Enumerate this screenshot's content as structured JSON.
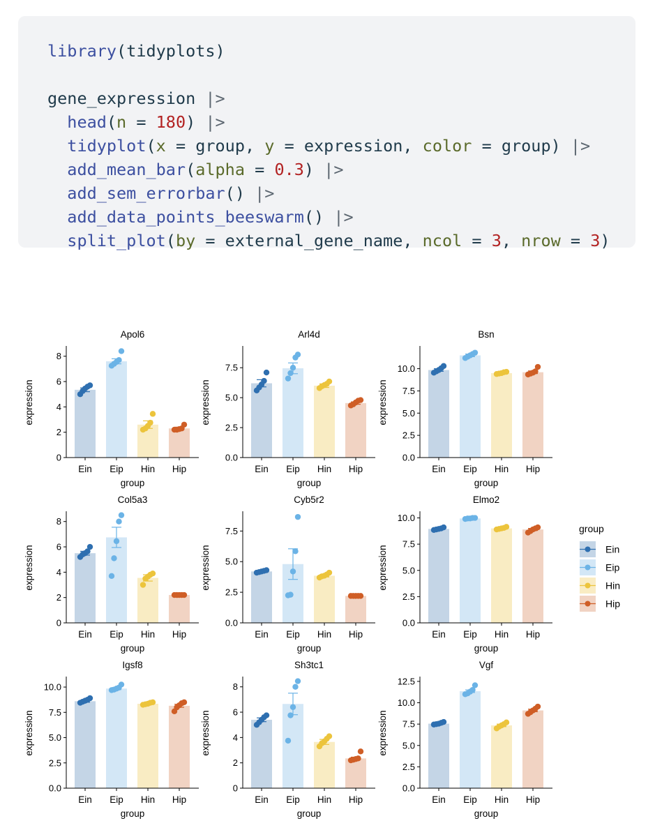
{
  "code": {
    "lines": [
      [
        {
          "t": "library",
          "c": "fn"
        },
        {
          "t": "(",
          "c": "var"
        },
        {
          "t": "tidyplots",
          "c": "var"
        },
        {
          "t": ")",
          "c": "var"
        }
      ],
      [],
      [
        {
          "t": "gene_expression ",
          "c": "var"
        },
        {
          "t": "|>",
          "c": "op"
        }
      ],
      [
        {
          "t": "  ",
          "c": "var"
        },
        {
          "t": "head",
          "c": "fn"
        },
        {
          "t": "(",
          "c": "var"
        },
        {
          "t": "n",
          "c": "arg"
        },
        {
          "t": " = ",
          "c": "var"
        },
        {
          "t": "180",
          "c": "num"
        },
        {
          "t": ") ",
          "c": "var"
        },
        {
          "t": "|>",
          "c": "op"
        }
      ],
      [
        {
          "t": "  ",
          "c": "var"
        },
        {
          "t": "tidyplot",
          "c": "fn"
        },
        {
          "t": "(",
          "c": "var"
        },
        {
          "t": "x",
          "c": "arg"
        },
        {
          "t": " = group, ",
          "c": "var"
        },
        {
          "t": "y",
          "c": "arg"
        },
        {
          "t": " = expression, ",
          "c": "var"
        },
        {
          "t": "color",
          "c": "arg"
        },
        {
          "t": " = group) ",
          "c": "var"
        },
        {
          "t": "|>",
          "c": "op"
        }
      ],
      [
        {
          "t": "  ",
          "c": "var"
        },
        {
          "t": "add_mean_bar",
          "c": "fn"
        },
        {
          "t": "(",
          "c": "var"
        },
        {
          "t": "alpha",
          "c": "arg"
        },
        {
          "t": " = ",
          "c": "var"
        },
        {
          "t": "0.3",
          "c": "num"
        },
        {
          "t": ") ",
          "c": "var"
        },
        {
          "t": "|>",
          "c": "op"
        }
      ],
      [
        {
          "t": "  ",
          "c": "var"
        },
        {
          "t": "add_sem_errorbar",
          "c": "fn"
        },
        {
          "t": "() ",
          "c": "var"
        },
        {
          "t": "|>",
          "c": "op"
        }
      ],
      [
        {
          "t": "  ",
          "c": "var"
        },
        {
          "t": "add_data_points_beeswarm",
          "c": "fn"
        },
        {
          "t": "() ",
          "c": "var"
        },
        {
          "t": "|>",
          "c": "op"
        }
      ],
      [
        {
          "t": "  ",
          "c": "var"
        },
        {
          "t": "split_plot",
          "c": "fn"
        },
        {
          "t": "(",
          "c": "var"
        },
        {
          "t": "by",
          "c": "arg"
        },
        {
          "t": " = external_gene_name, ",
          "c": "var"
        },
        {
          "t": "ncol",
          "c": "arg"
        },
        {
          "t": " = ",
          "c": "var"
        },
        {
          "t": "3",
          "c": "num"
        },
        {
          "t": ", ",
          "c": "var"
        },
        {
          "t": "nrow",
          "c": "arg"
        },
        {
          "t": " = ",
          "c": "var"
        },
        {
          "t": "3",
          "c": "num"
        },
        {
          "t": ")",
          "c": "var"
        }
      ]
    ]
  },
  "legend": {
    "title": "group",
    "items": [
      {
        "label": "Ein",
        "color": "#2e6fb0",
        "fill": "#c4d5e6"
      },
      {
        "label": "Eip",
        "color": "#6bb3e6",
        "fill": "#d3e7f6"
      },
      {
        "label": "Hin",
        "color": "#ecc43c",
        "fill": "#f9ecc3"
      },
      {
        "label": "Hip",
        "color": "#cf5e26",
        "fill": "#f1d3c3"
      }
    ]
  },
  "chart_data": [
    {
      "type": "bar",
      "title": "Apol6",
      "xlabel": "group",
      "ylabel": "expression",
      "categories": [
        "Ein",
        "Eip",
        "Hin",
        "Hip"
      ],
      "ylim": [
        0,
        8.7
      ],
      "yticks": [
        "0",
        "2",
        "4",
        "6",
        "8"
      ],
      "ytick_values": [
        0,
        2,
        4,
        6,
        8
      ],
      "means": [
        5.35,
        7.6,
        2.6,
        2.3
      ],
      "sem": [
        0.15,
        0.2,
        0.3,
        0.1
      ],
      "points": [
        [
          5.0,
          5.25,
          5.45,
          5.6,
          5.7
        ],
        [
          7.25,
          7.4,
          7.55,
          7.7,
          8.4
        ],
        [
          2.2,
          2.3,
          2.5,
          2.75,
          3.45
        ],
        [
          2.2,
          2.2,
          2.25,
          2.3,
          2.6
        ]
      ]
    },
    {
      "type": "bar",
      "title": "Arl4d",
      "xlabel": "group",
      "ylabel": "expression",
      "categories": [
        "Ein",
        "Eip",
        "Hin",
        "Hip"
      ],
      "ylim": [
        0,
        9.2
      ],
      "yticks": [
        "0.0",
        "2.5",
        "5.0",
        "7.5"
      ],
      "ytick_values": [
        0,
        2.5,
        5,
        7.5
      ],
      "means": [
        6.2,
        7.45,
        6.0,
        4.55
      ],
      "sem": [
        0.3,
        0.45,
        0.15,
        0.1
      ],
      "points": [
        [
          5.6,
          5.85,
          6.1,
          6.4,
          7.1
        ],
        [
          6.6,
          7.05,
          7.5,
          8.35,
          8.6
        ],
        [
          5.8,
          5.95,
          6.05,
          6.15,
          6.35
        ],
        [
          4.35,
          4.45,
          4.6,
          4.75,
          4.8
        ]
      ]
    },
    {
      "type": "bar",
      "title": "Bsn",
      "xlabel": "group",
      "ylabel": "expression",
      "categories": [
        "Ein",
        "Eip",
        "Hin",
        "Hip"
      ],
      "ylim": [
        0,
        12.4
      ],
      "yticks": [
        "0.0",
        "2.5",
        "5.0",
        "7.5",
        "10.0"
      ],
      "ytick_values": [
        0,
        2.5,
        5,
        7.5,
        10
      ],
      "means": [
        9.85,
        11.5,
        9.5,
        9.6
      ],
      "sem": [
        0.15,
        0.15,
        0.05,
        0.15
      ],
      "points": [
        [
          9.55,
          9.7,
          9.85,
          10.05,
          10.3
        ],
        [
          11.2,
          11.35,
          11.5,
          11.65,
          11.8
        ],
        [
          9.4,
          9.45,
          9.5,
          9.6,
          9.65
        ],
        [
          9.35,
          9.45,
          9.55,
          9.7,
          10.2
        ]
      ]
    },
    {
      "type": "bar",
      "title": "Col5a3",
      "xlabel": "group",
      "ylabel": "expression",
      "categories": [
        "Ein",
        "Eip",
        "Hin",
        "Hip"
      ],
      "ylim": [
        0,
        8.7
      ],
      "yticks": [
        "0",
        "2",
        "4",
        "6",
        "8"
      ],
      "ytick_values": [
        0,
        2,
        4,
        6,
        8
      ],
      "means": [
        5.5,
        6.75,
        3.55,
        2.2
      ],
      "sem": [
        0.15,
        0.8,
        0.25,
        0.02
      ],
      "points": [
        [
          5.2,
          5.4,
          5.5,
          5.65,
          6.0
        ],
        [
          3.7,
          5.1,
          6.45,
          8.0,
          8.5
        ],
        [
          3.0,
          3.5,
          3.65,
          3.8,
          3.9
        ],
        [
          2.2,
          2.2,
          2.2,
          2.2,
          2.2
        ]
      ]
    },
    {
      "type": "bar",
      "title": "Cyb5r2",
      "xlabel": "group",
      "ylabel": "expression",
      "categories": [
        "Ein",
        "Eip",
        "Hin",
        "Hip"
      ],
      "ylim": [
        0,
        9.0
      ],
      "yticks": [
        "0.0",
        "2.5",
        "5.0",
        "7.5"
      ],
      "ytick_values": [
        0,
        2.5,
        5,
        7.5
      ],
      "means": [
        4.2,
        4.8,
        3.85,
        2.2
      ],
      "sem": [
        0.05,
        1.25,
        0.1,
        0.02
      ],
      "points": [
        [
          4.1,
          4.15,
          4.2,
          4.25,
          4.3
        ],
        [
          2.25,
          2.3,
          4.2,
          5.85,
          8.65
        ],
        [
          3.7,
          3.8,
          3.85,
          3.95,
          4.1
        ],
        [
          2.2,
          2.2,
          2.2,
          2.2,
          2.2
        ]
      ]
    },
    {
      "type": "bar",
      "title": "Elmo2",
      "xlabel": "group",
      "ylabel": "expression",
      "categories": [
        "Ein",
        "Eip",
        "Hin",
        "Hip"
      ],
      "ylim": [
        0,
        10.5
      ],
      "yticks": [
        "0.0",
        "2.5",
        "5.0",
        "7.5",
        "10.0"
      ],
      "ytick_values": [
        0,
        2.5,
        5,
        7.5,
        10
      ],
      "means": [
        8.95,
        9.95,
        9.0,
        8.9
      ],
      "sem": [
        0.05,
        0.05,
        0.05,
        0.1
      ],
      "points": [
        [
          8.85,
          8.9,
          8.95,
          9.0,
          9.1
        ],
        [
          9.9,
          9.95,
          9.95,
          10.0,
          10.0
        ],
        [
          8.9,
          8.95,
          9.0,
          9.05,
          9.15
        ],
        [
          8.6,
          8.75,
          8.9,
          9.0,
          9.1
        ]
      ]
    },
    {
      "type": "bar",
      "title": "Igsf8",
      "xlabel": "group",
      "ylabel": "expression",
      "categories": [
        "Ein",
        "Eip",
        "Hin",
        "Hip"
      ],
      "ylim": [
        0,
        10.9
      ],
      "yticks": [
        "0.0",
        "2.5",
        "5.0",
        "7.5",
        "10.0"
      ],
      "ytick_values": [
        0,
        2.5,
        5,
        7.5,
        10
      ],
      "means": [
        8.6,
        9.85,
        8.35,
        8.15
      ],
      "sem": [
        0.1,
        0.1,
        0.05,
        0.15
      ],
      "points": [
        [
          8.45,
          8.55,
          8.65,
          8.75,
          8.9
        ],
        [
          9.7,
          9.75,
          9.85,
          9.95,
          10.25
        ],
        [
          8.25,
          8.3,
          8.35,
          8.45,
          8.5
        ],
        [
          7.6,
          8.0,
          8.2,
          8.4,
          8.5
        ]
      ]
    },
    {
      "type": "bar",
      "title": "Sh3tc1",
      "xlabel": "group",
      "ylabel": "expression",
      "categories": [
        "Ein",
        "Eip",
        "Hin",
        "Hip"
      ],
      "ylim": [
        0,
        8.7
      ],
      "yticks": [
        "0",
        "2",
        "4",
        "6",
        "8"
      ],
      "ytick_values": [
        0,
        2,
        4,
        6,
        8
      ],
      "means": [
        5.4,
        6.65,
        3.65,
        2.35
      ],
      "sem": [
        0.15,
        0.85,
        0.2,
        0.1
      ],
      "points": [
        [
          5.0,
          5.2,
          5.4,
          5.6,
          5.75
        ],
        [
          3.75,
          5.75,
          6.4,
          8.0,
          8.45
        ],
        [
          3.3,
          3.55,
          3.7,
          3.9,
          4.1
        ],
        [
          2.2,
          2.25,
          2.3,
          2.35,
          2.9
        ]
      ]
    },
    {
      "type": "bar",
      "title": "Vgf",
      "xlabel": "group",
      "ylabel": "expression",
      "categories": [
        "Ein",
        "Eip",
        "Hin",
        "Hip"
      ],
      "ylim": [
        0,
        12.9
      ],
      "yticks": [
        "0.0",
        "2.5",
        "5.0",
        "7.5",
        "10.0",
        "12.5"
      ],
      "ytick_values": [
        0,
        2.5,
        5,
        7.5,
        10,
        12.5
      ],
      "means": [
        7.55,
        11.35,
        7.35,
        9.1
      ],
      "sem": [
        0.1,
        0.15,
        0.15,
        0.15
      ],
      "points": [
        [
          7.45,
          7.5,
          7.55,
          7.65,
          7.75
        ],
        [
          11.0,
          11.1,
          11.3,
          11.5,
          12.05
        ],
        [
          7.0,
          7.2,
          7.35,
          7.5,
          7.7
        ],
        [
          8.7,
          8.9,
          9.1,
          9.3,
          9.55
        ]
      ]
    }
  ]
}
